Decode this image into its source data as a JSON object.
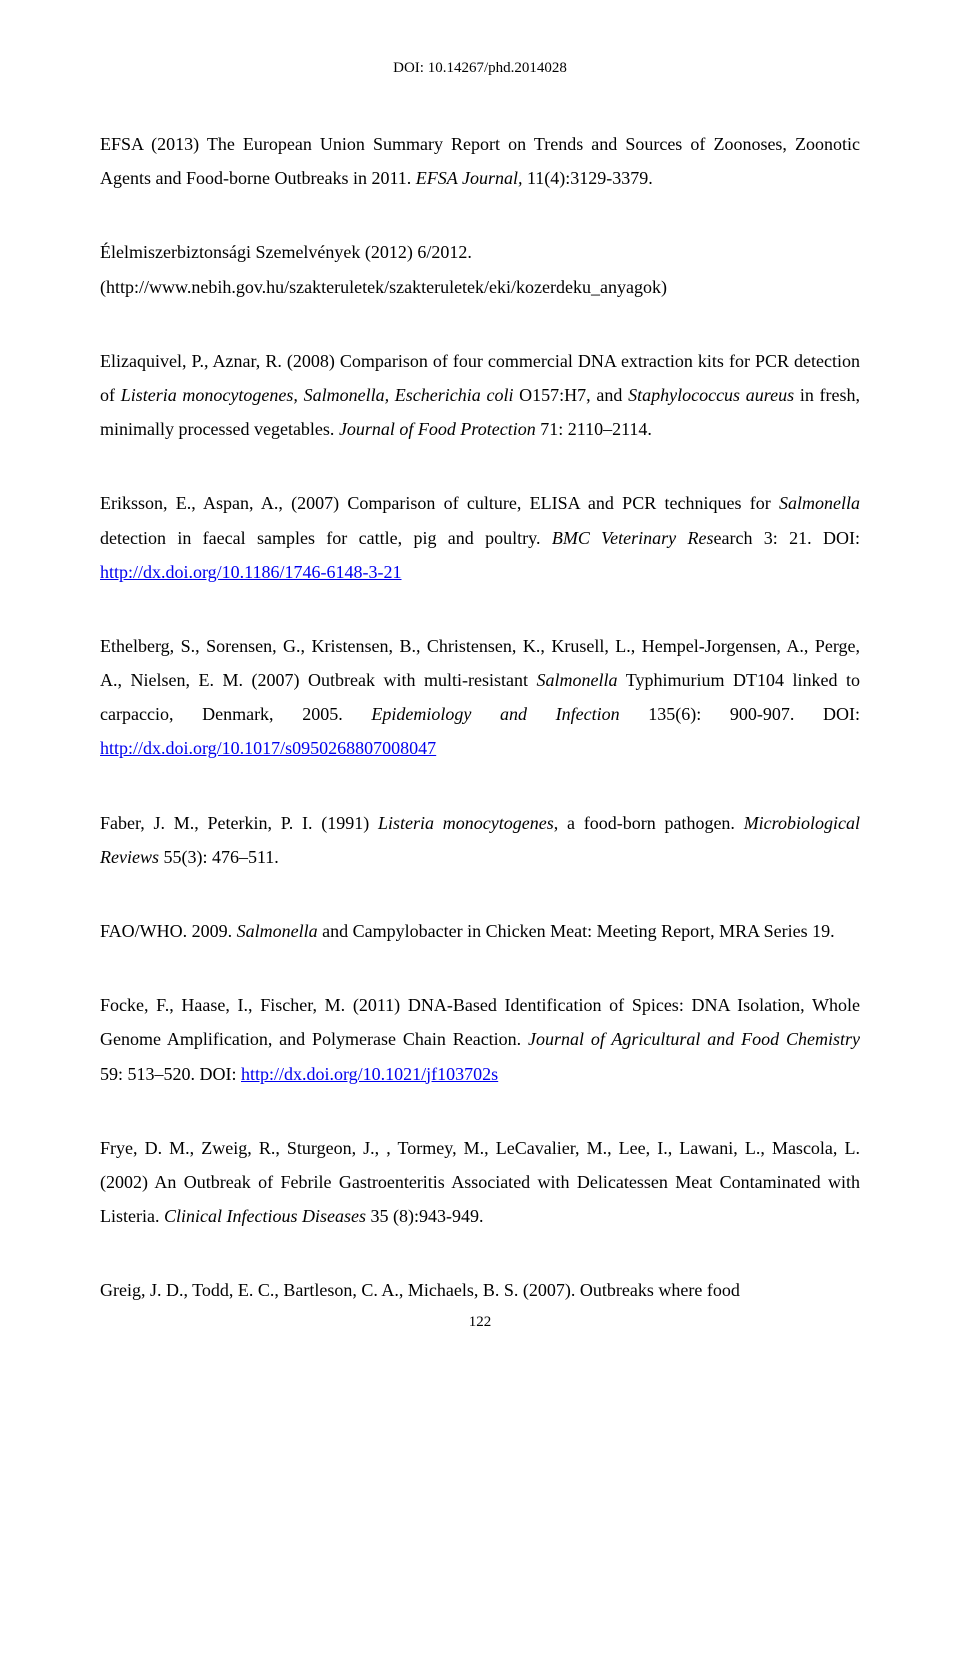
{
  "doi_header": "DOI: 10.14267/phd.2014028",
  "page_number": "122",
  "refs": {
    "r1": {
      "a": "EFSA (2013) The European Union Summary Report on Trends and Sources of Zoonoses, Zoonotic Agents and Food-borne Outbreaks in 2011. ",
      "b": "EFSA Journal,",
      "c": " 11(4):3129-3379."
    },
    "r2": {
      "a": "Élelmiszerbiztonsági Szemelvények (2012) 6/2012.",
      "b": "(http://www.nebih.gov.hu/szakteruletek/szakteruletek/eki/kozerdeku_anyagok)"
    },
    "r3": {
      "a": "Elizaquivel, P., Aznar, R. (2008) Comparison of four commercial DNA extraction kits for PCR detection of ",
      "b": "Listeria monocytogenes, Salmonella, Escherichia coli",
      "c": " O157:H7, and ",
      "d": "Staphylococcus aureus",
      "e": " in fresh, minimally processed vegetables. ",
      "f": "Journal of Food Protection",
      "g": " 71: 2110–2114."
    },
    "r4": {
      "a": "Eriksson, E., Aspan, A., (2007) Comparison of culture, ELISA and PCR techniques for ",
      "b": "Salmonella",
      "c": " detection in faecal samples for cattle, pig and poultry. ",
      "d": "BMC Veterinary Res",
      "e": "earch 3: 21. DOI: ",
      "f": "http://dx.doi.org/10.1186/1746-6148-3-21"
    },
    "r5": {
      "a": "Ethelberg, S., Sorensen, G., Kristensen, B., Christensen, K., Krusell, L., Hempel-Jorgensen, A., Perge, A., Nielsen, E. M. (2007) Outbreak with multi-resistant ",
      "b": "Salmonella",
      "c": " Typhimurium DT104 linked to carpaccio, Denmark, 2005. ",
      "d": "Epidemiology and Infection",
      "e": " 135(6): 900-907. DOI: ",
      "f": "http://dx.doi.org/10.1017/s0950268807008047"
    },
    "r6": {
      "a": "Faber, J. M., Peterkin, P. I. (1991) ",
      "b": "Listeria monocytogenes",
      "c": ", a food-born pathogen. ",
      "d": "Microbiological Reviews ",
      "e": " 55(3): 476–511."
    },
    "r7": {
      "a": "FAO/WHO. 2009. ",
      "b": "Salmonella",
      "c": " and Campylobacter in Chicken Meat: Meeting Report, MRA Series 19."
    },
    "r8": {
      "a": "Focke, F., Haase, I., Fischer, M. (2011) DNA-Based Identification of Spices: DNA Isolation, Whole Genome Amplification, and Polymerase Chain Reaction. ",
      "b": "Journal of Agricultural and Food Chemistry",
      "c": " 59: 513–520. DOI: ",
      "d": "http://dx.doi.org/10.1021/jf103702s"
    },
    "r9": {
      "a": "Frye, D. M., Zweig, R., Sturgeon, J., , Tormey, M., LeCavalier, M., Lee, I., Lawani, L., Mascola, L. (2002) An Outbreak of Febrile Gastroenteritis Associated with Delicatessen Meat Contaminated with Listeria. ",
      "b": "Clinical Infectious Diseases",
      "c": " 35 (8):943-949."
    },
    "r10": {
      "a": "Greig, J. D., Todd, E. C., Bartleson, C. A., Michaels, B. S. (2007). Outbreaks where food"
    }
  }
}
